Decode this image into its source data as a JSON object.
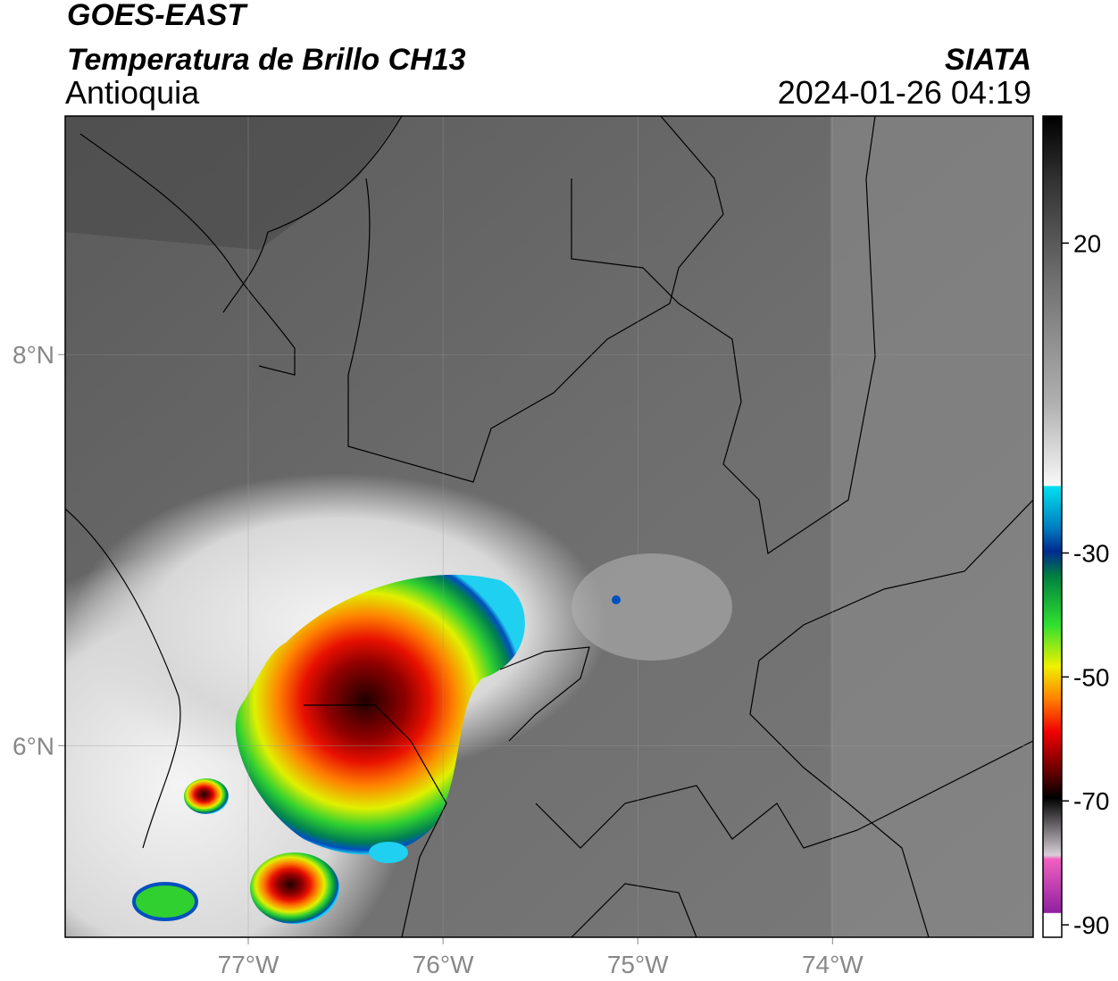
{
  "header": {
    "title": "GOES-EAST",
    "subtitle": "Temperatura de Brillo CH13",
    "region": "Antioquia",
    "source": "SIATA",
    "datetime": "2024-01-26 04:19"
  },
  "map": {
    "xlim": [
      -77.94,
      -72.97
    ],
    "ylim": [
      5.02,
      9.22
    ],
    "xticks": [
      {
        "value": -77,
        "label": "77°W"
      },
      {
        "value": -76,
        "label": "76°W"
      },
      {
        "value": -75,
        "label": "75°W"
      },
      {
        "value": -74,
        "label": "74°W"
      }
    ],
    "yticks": [
      {
        "value": 8,
        "label": "8°N"
      },
      {
        "value": 6,
        "label": "6°N"
      }
    ]
  },
  "colorbar": {
    "lim": [
      -92,
      40.5
    ],
    "ticks": [
      20,
      -30,
      -50,
      -70,
      -90
    ]
  }
}
